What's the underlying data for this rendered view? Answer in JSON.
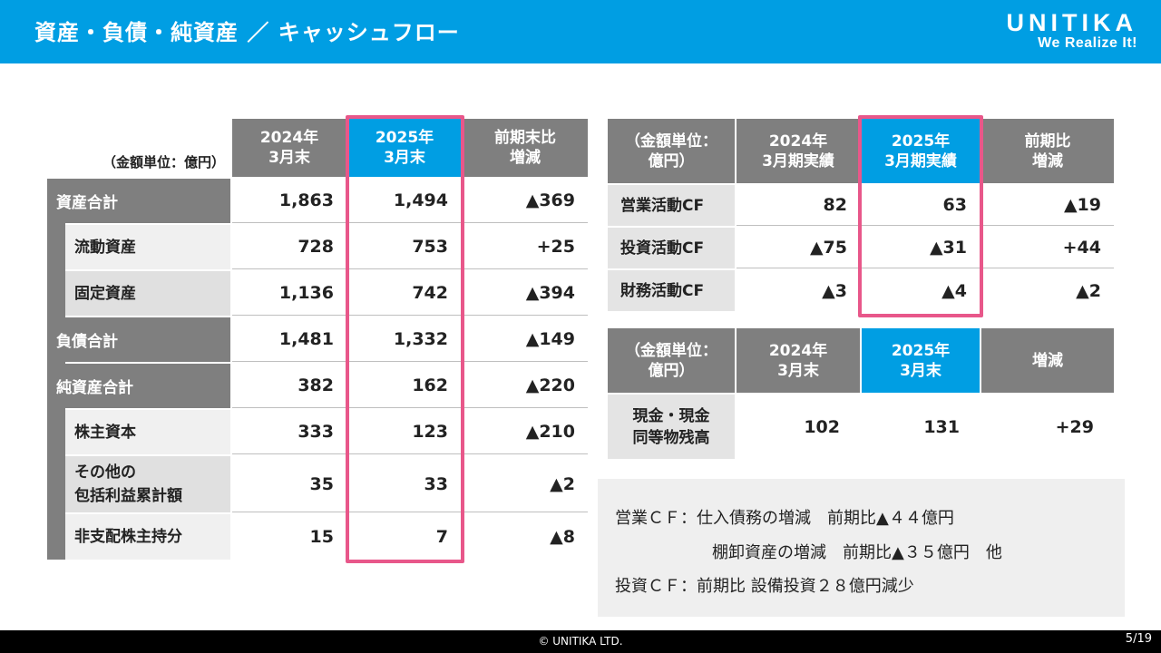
{
  "header": {
    "title": "資産・負債・純資産 ／ キャッシュフロー",
    "logo_name": "UNITIKA",
    "logo_tagline": "We Realize It!"
  },
  "balance_sheet": {
    "unit": "（金額単位：億円）",
    "col1": "2024年\n3月末",
    "col2": "2025年\n3月末",
    "col3": "前期末比\n増減",
    "rows": [
      {
        "label": "資産合計",
        "v1": "1,863",
        "v2": "1,494",
        "v3": "▲369"
      },
      {
        "label": "流動資産",
        "v1": "728",
        "v2": "753",
        "v3": "+25"
      },
      {
        "label": "固定資産",
        "v1": "1,136",
        "v2": "742",
        "v3": "▲394"
      },
      {
        "label": "負債合計",
        "v1": "1,481",
        "v2": "1,332",
        "v3": "▲149"
      },
      {
        "label": "純資産合計",
        "v1": "382",
        "v2": "162",
        "v3": "▲220"
      },
      {
        "label": "株主資本",
        "v1": "333",
        "v2": "123",
        "v3": "▲210"
      },
      {
        "label": "その他の\n包括利益累計額",
        "v1": "35",
        "v2": "33",
        "v3": "▲2"
      },
      {
        "label": "非支配株主持分",
        "v1": "15",
        "v2": "7",
        "v3": "▲8"
      }
    ]
  },
  "cash_flow": {
    "unit": "（金額単位：\n億円）",
    "col1": "2024年\n3月期実績",
    "col2": "2025年\n3月期実績",
    "col3": "前期比\n増減",
    "rows": [
      {
        "label": "営業活動CF",
        "v1": "82",
        "v2": "63",
        "v3": "▲19"
      },
      {
        "label": "投資活動CF",
        "v1": "▲75",
        "v2": "▲31",
        "v3": "+44"
      },
      {
        "label": "財務活動CF",
        "v1": "▲3",
        "v2": "▲4",
        "v3": "▲2"
      }
    ]
  },
  "cash_balance": {
    "unit": "（金額単位：\n億円）",
    "col1": "2024年\n3月末",
    "col2": "2025年\n3月末",
    "col3": "増減",
    "label": "現金・現金\n同等物残高",
    "v1": "102",
    "v2": "131",
    "v3": "+29"
  },
  "notes": {
    "line1": "営業ＣＦ：仕入債務の増減　前期比▲４４億円",
    "line2": "棚卸資産の増減　前期比▲３５億円　他",
    "line3": "投資ＣＦ：前期比 設備投資２８億円減少"
  },
  "footer": {
    "copyright": "© UNITIKA LTD.",
    "page": "5/19"
  }
}
